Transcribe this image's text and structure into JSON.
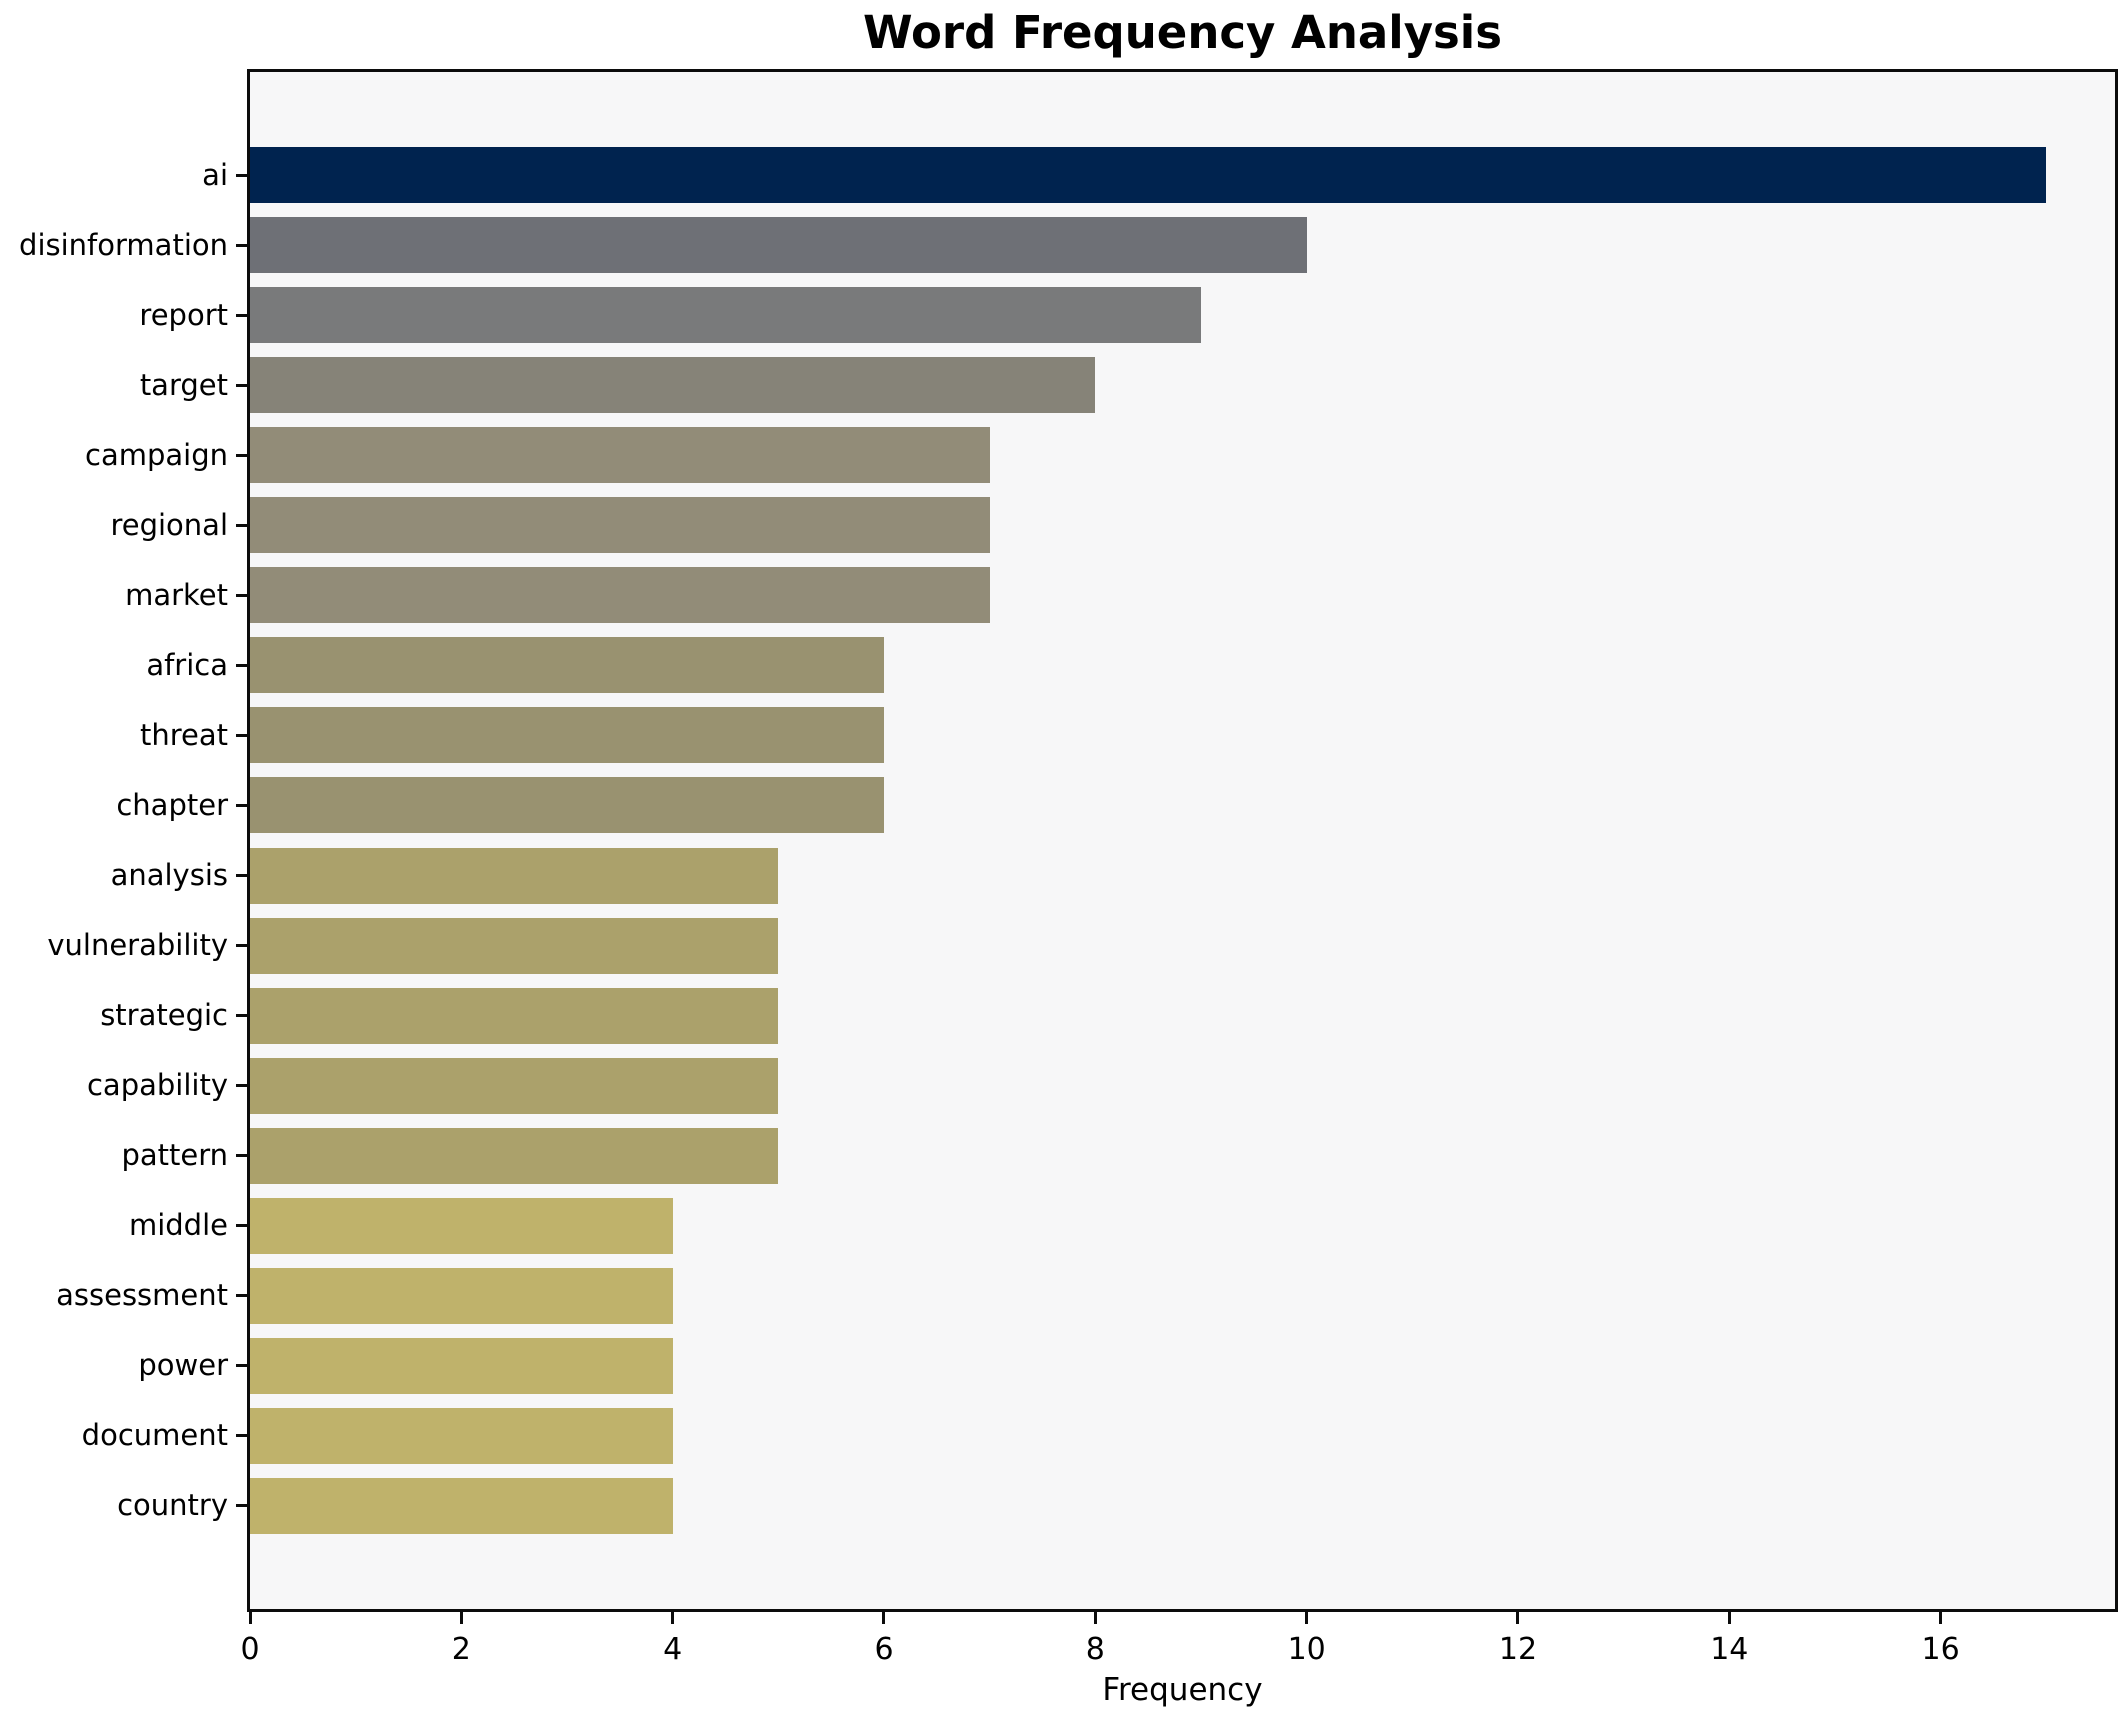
{
  "chart_data": {
    "type": "bar",
    "orientation": "horizontal",
    "title": "Word Frequency Analysis",
    "xlabel": "Frequency",
    "ylabel": "",
    "categories": [
      "ai",
      "disinformation",
      "report",
      "target",
      "campaign",
      "regional",
      "market",
      "africa",
      "threat",
      "chapter",
      "analysis",
      "vulnerability",
      "strategic",
      "capability",
      "pattern",
      "middle",
      "assessment",
      "power",
      "document",
      "country"
    ],
    "values": [
      17,
      10,
      9,
      8,
      7,
      7,
      7,
      6,
      6,
      6,
      5,
      5,
      5,
      5,
      5,
      4,
      4,
      4,
      4,
      4
    ],
    "bar_colors": [
      "#00234f",
      "#6e7076",
      "#797a7b",
      "#868378",
      "#928c78",
      "#928c78",
      "#928c78",
      "#999270",
      "#999270",
      "#999270",
      "#aba16b",
      "#aba16b",
      "#aba16b",
      "#aba16b",
      "#aba16b",
      "#bfb26b",
      "#bfb26b",
      "#bfb26b",
      "#bfb26b",
      "#bfb26b"
    ],
    "xlim": [
      0,
      17.65
    ],
    "xticks": [
      0,
      2,
      4,
      6,
      8,
      10,
      12,
      14,
      16
    ],
    "grid": false,
    "legend": null,
    "plot_background": "#f7f7f8",
    "figure_background": "#ffffff",
    "spine_color": "#0c0c0c"
  }
}
